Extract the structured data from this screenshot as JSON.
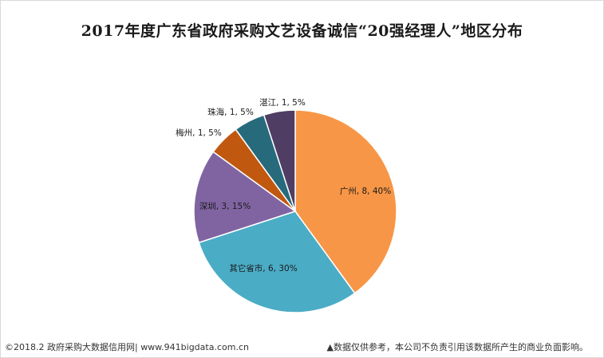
{
  "chart_data": {
    "type": "pie",
    "title": "2017年度广东省政府采购文艺设备诚信“20强经理人”地区分布",
    "slices": [
      {
        "label": "广州, 8, 40%",
        "name": "广州",
        "value": 8,
        "percent": 40,
        "color": "#f79646"
      },
      {
        "label": "其它省市, 6, 30%",
        "name": "其它省市",
        "value": 6,
        "percent": 30,
        "color": "#4bacc6"
      },
      {
        "label": "深圳, 3, 15%",
        "name": "深圳",
        "value": 3,
        "percent": 15,
        "color": "#8064a2"
      },
      {
        "label": "梅州, 1, 5%",
        "name": "梅州",
        "value": 1,
        "percent": 5,
        "color": "#c0580f"
      },
      {
        "label": "珠海, 1, 5%",
        "name": "珠海",
        "value": 1,
        "percent": 5,
        "color": "#276a7c"
      },
      {
        "label": "湛江, 1, 5%",
        "name": "湛江",
        "value": 1,
        "percent": 5,
        "color": "#4f3d63"
      }
    ]
  },
  "footer": {
    "left": "©2018.2 政府采购大数据信用网| www.941bigdata.com.cn",
    "right": "▲数据仅供参考，本公司不负责引用该数据所产生的商业负面影响。"
  }
}
